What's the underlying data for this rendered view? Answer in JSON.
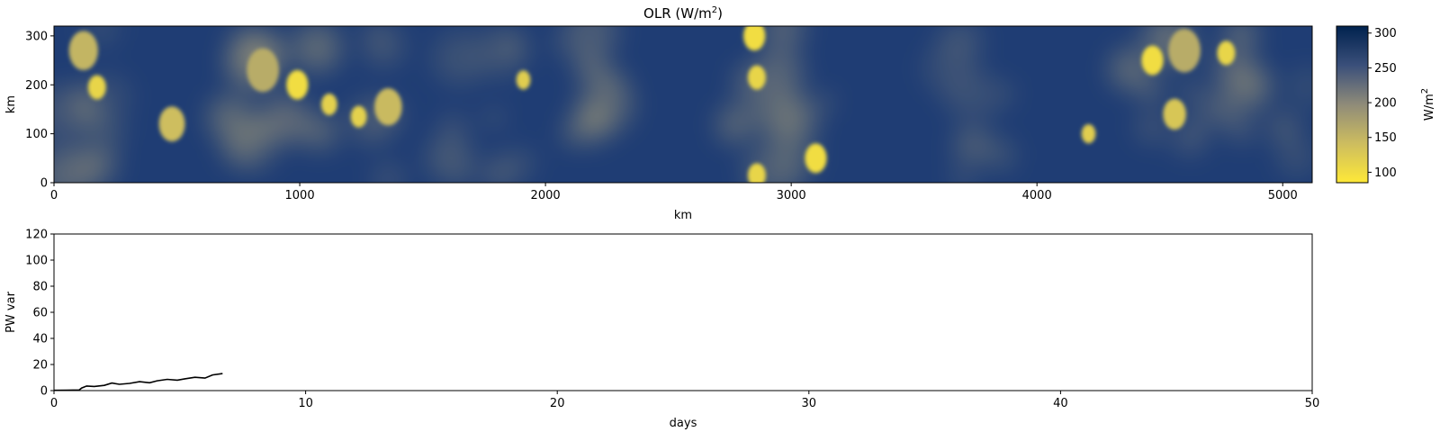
{
  "chart_data": [
    {
      "type": "heatmap",
      "title": "OLR (W/m²)",
      "xlabel": "km",
      "ylabel": "km",
      "xlim": [
        0,
        5120
      ],
      "ylim": [
        0,
        320
      ],
      "xticks": [
        0,
        1000,
        2000,
        3000,
        4000,
        5000
      ],
      "yticks": [
        0,
        100,
        200,
        300
      ],
      "colorbar": {
        "label": "W/m²",
        "range": [
          85,
          310
        ],
        "ticks": [
          100,
          150,
          200,
          250,
          300
        ],
        "colormap": "cividis (reversed)",
        "color_low": "#fee838",
        "color_mid": "#7c7b78",
        "color_high": "#00224e"
      },
      "convective_cores": [
        {
          "x": 120,
          "y": 270,
          "olr": 150
        },
        {
          "x": 175,
          "y": 195,
          "olr": 110
        },
        {
          "x": 480,
          "y": 120,
          "olr": 140
        },
        {
          "x": 850,
          "y": 230,
          "olr": 160
        },
        {
          "x": 990,
          "y": 200,
          "olr": 100
        },
        {
          "x": 1120,
          "y": 160,
          "olr": 115
        },
        {
          "x": 1240,
          "y": 135,
          "olr": 115
        },
        {
          "x": 1360,
          "y": 155,
          "olr": 145
        },
        {
          "x": 1910,
          "y": 210,
          "olr": 120
        },
        {
          "x": 2850,
          "y": 300,
          "olr": 100
        },
        {
          "x": 2860,
          "y": 215,
          "olr": 110
        },
        {
          "x": 3100,
          "y": 50,
          "olr": 100
        },
        {
          "x": 4210,
          "y": 100,
          "olr": 120
        },
        {
          "x": 4470,
          "y": 250,
          "olr": 100
        },
        {
          "x": 4560,
          "y": 140,
          "olr": 130
        },
        {
          "x": 4600,
          "y": 270,
          "olr": 160
        },
        {
          "x": 4770,
          "y": 265,
          "olr": 110
        },
        {
          "x": 2860,
          "y": 15,
          "olr": 110
        }
      ]
    },
    {
      "type": "line",
      "xlabel": "days",
      "ylabel": "PW var",
      "xlim": [
        0,
        50
      ],
      "ylim": [
        0,
        120
      ],
      "xticks": [
        0,
        10,
        20,
        30,
        40,
        50
      ],
      "yticks": [
        0,
        20,
        40,
        60,
        80,
        100,
        120
      ],
      "line_color": "#000000",
      "series": [
        {
          "x": [
            0,
            0.5,
            1.0,
            1.1,
            1.3,
            1.6,
            2.0,
            2.3,
            2.6,
            3.0,
            3.4,
            3.8,
            4.1,
            4.5,
            4.9,
            5.2,
            5.6,
            6.0,
            6.3,
            6.7
          ],
          "values": [
            0.2,
            0.3,
            0.5,
            2.0,
            3.5,
            3.2,
            4.0,
            5.8,
            4.8,
            5.5,
            6.8,
            6.0,
            7.5,
            8.6,
            8.0,
            9.0,
            10.2,
            9.6,
            12.0,
            13.0
          ]
        }
      ]
    }
  ]
}
